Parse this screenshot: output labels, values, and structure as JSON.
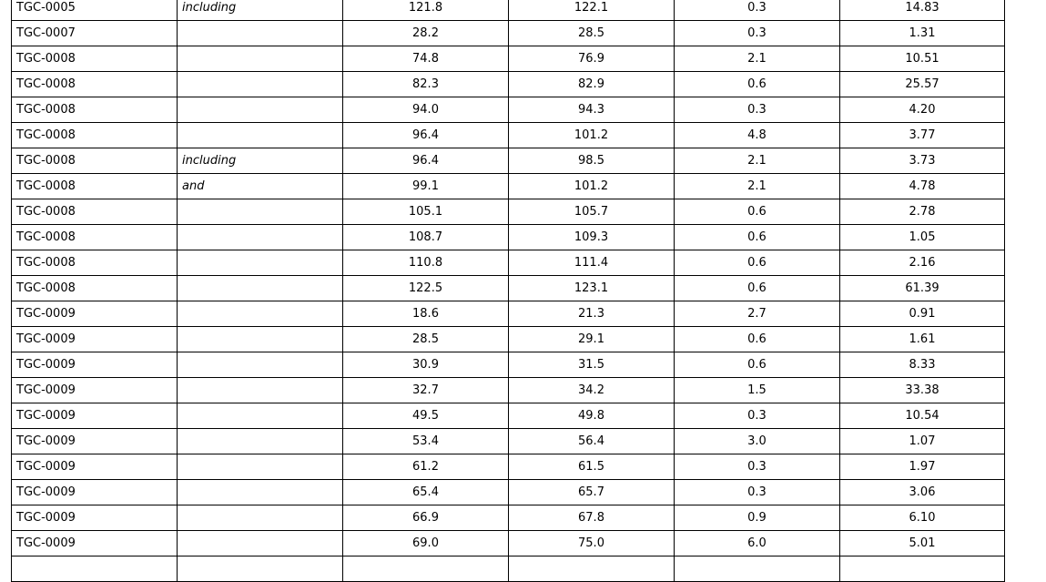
{
  "rows": [
    [
      "TGC-0005",
      "including",
      "121.8",
      "122.1",
      "0.3",
      "14.83"
    ],
    [
      "TGC-0007",
      "",
      "28.2",
      "28.5",
      "0.3",
      "1.31"
    ],
    [
      "TGC-0008",
      "",
      "74.8",
      "76.9",
      "2.1",
      "10.51"
    ],
    [
      "TGC-0008",
      "",
      "82.3",
      "82.9",
      "0.6",
      "25.57"
    ],
    [
      "TGC-0008",
      "",
      "94.0",
      "94.3",
      "0.3",
      "4.20"
    ],
    [
      "TGC-0008",
      "",
      "96.4",
      "101.2",
      "4.8",
      "3.77"
    ],
    [
      "TGC-0008",
      "including",
      "96.4",
      "98.5",
      "2.1",
      "3.73"
    ],
    [
      "TGC-0008",
      "and",
      "99.1",
      "101.2",
      "2.1",
      "4.78"
    ],
    [
      "TGC-0008",
      "",
      "105.1",
      "105.7",
      "0.6",
      "2.78"
    ],
    [
      "TGC-0008",
      "",
      "108.7",
      "109.3",
      "0.6",
      "1.05"
    ],
    [
      "TGC-0008",
      "",
      "110.8",
      "111.4",
      "0.6",
      "2.16"
    ],
    [
      "TGC-0008",
      "",
      "122.5",
      "123.1",
      "0.6",
      "61.39"
    ],
    [
      "TGC-0009",
      "",
      "18.6",
      "21.3",
      "2.7",
      "0.91"
    ],
    [
      "TGC-0009",
      "",
      "28.5",
      "29.1",
      "0.6",
      "1.61"
    ],
    [
      "TGC-0009",
      "",
      "30.9",
      "31.5",
      "0.6",
      "8.33"
    ],
    [
      "TGC-0009",
      "",
      "32.7",
      "34.2",
      "1.5",
      "33.38"
    ],
    [
      "TGC-0009",
      "",
      "49.5",
      "49.8",
      "0.3",
      "10.54"
    ],
    [
      "TGC-0009",
      "",
      "53.4",
      "56.4",
      "3.0",
      "1.07"
    ],
    [
      "TGC-0009",
      "",
      "61.2",
      "61.5",
      "0.3",
      "1.97"
    ],
    [
      "TGC-0009",
      "",
      "65.4",
      "65.7",
      "0.3",
      "3.06"
    ],
    [
      "TGC-0009",
      "",
      "66.9",
      "67.8",
      "0.9",
      "6.10"
    ],
    [
      "TGC-0009",
      "",
      "69.0",
      "75.0",
      "6.0",
      "5.01"
    ],
    [
      "",
      "",
      "",
      "",
      "",
      ""
    ]
  ]
}
